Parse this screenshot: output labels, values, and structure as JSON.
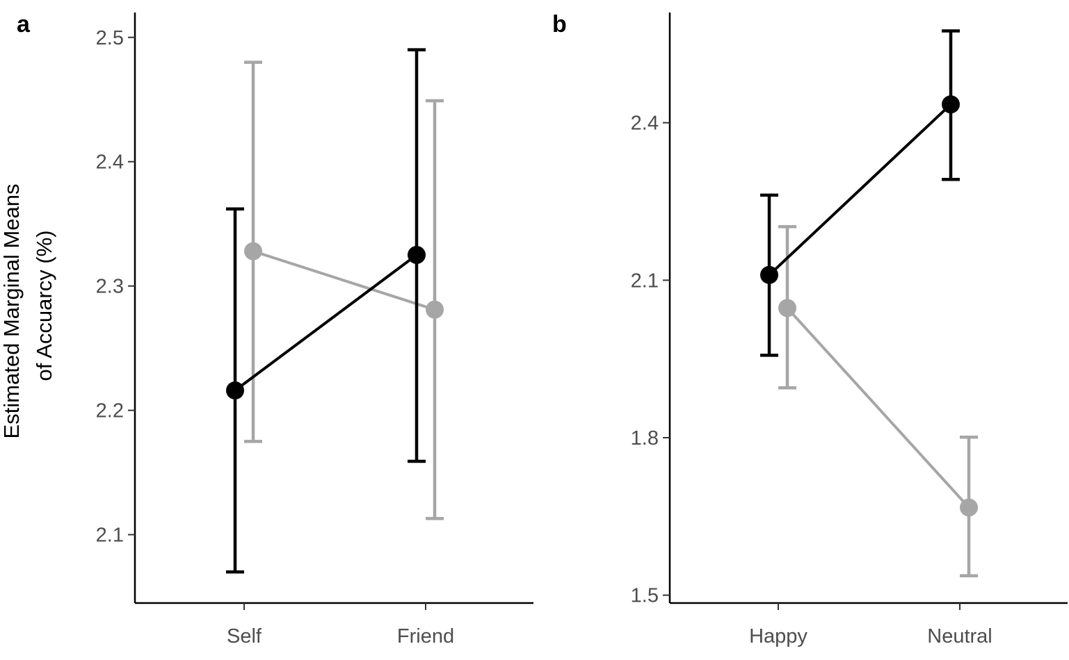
{
  "chart_data": [
    {
      "type": "line",
      "panel": "a",
      "categories": [
        "Self",
        "Friend"
      ],
      "ylabel_lines": [
        "Estimated Marginal Means",
        "of Accuarcy (%)"
      ],
      "yticks": [
        "2.1",
        "2.2",
        "2.3",
        "2.4",
        "2.5"
      ],
      "yrange": [
        2.045,
        2.52
      ],
      "grid": false,
      "series": [
        {
          "color": "#000000",
          "values": [
            2.216,
            2.325
          ],
          "lower": [
            2.07,
            2.159
          ],
          "upper": [
            2.362,
            2.49
          ]
        },
        {
          "color": "#a6a6a6",
          "values": [
            2.328,
            2.281
          ],
          "lower": [
            2.175,
            2.113
          ],
          "upper": [
            2.48,
            2.449
          ]
        }
      ]
    },
    {
      "type": "line",
      "panel": "b",
      "categories": [
        "Happy",
        "Neutral"
      ],
      "yticks": [
        "1.5",
        "1.8",
        "2.1",
        "2.4"
      ],
      "yrange": [
        1.485,
        2.61
      ],
      "grid": false,
      "series": [
        {
          "color": "#000000",
          "values": [
            2.11,
            2.435
          ],
          "lower": [
            1.957,
            2.292
          ],
          "upper": [
            2.262,
            2.575
          ]
        },
        {
          "color": "#a6a6a6",
          "values": [
            2.047,
            1.667
          ],
          "lower": [
            1.895,
            1.537
          ],
          "upper": [
            2.202,
            1.801
          ]
        }
      ]
    }
  ]
}
